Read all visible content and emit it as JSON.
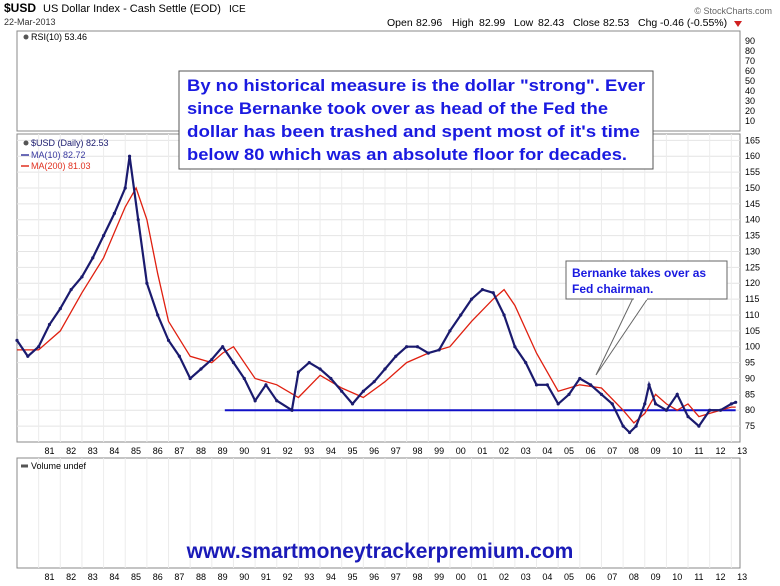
{
  "header": {
    "symbol": "$USD",
    "description": "US Dollar Index - Cash Settle (EOD)",
    "exchange": "ICE",
    "date": "22-Mar-2013",
    "open_label": "Open",
    "open": "82.96",
    "high_label": "High",
    "high": "82.99",
    "low_label": "Low",
    "low": "82.43",
    "close_label": "Close",
    "close": "82.53",
    "chg_label": "Chg",
    "chg": "-0.46 (-0.55%)",
    "source": "© StockCharts.com"
  },
  "rsi_panel": {
    "label": "RSI(10) 53.46",
    "ticks": [
      "90",
      "80",
      "70",
      "60",
      "50",
      "40",
      "30",
      "20",
      "10"
    ]
  },
  "price_panel": {
    "legend": [
      {
        "text": "$USD (Daily) 82.53",
        "color": "#1a1a6e"
      },
      {
        "text": "MA(10) 82.72",
        "color": "#3a3aa0"
      },
      {
        "text": "MA(200) 81.03",
        "color": "#e03020"
      }
    ],
    "y_ticks": [
      "165",
      "160",
      "155",
      "150",
      "145",
      "140",
      "135",
      "130",
      "125",
      "120",
      "115",
      "110",
      "105",
      "100",
      "95",
      "90",
      "85",
      "80",
      "75"
    ],
    "note_main": [
      "By no historical measure is the dollar \"strong\". Ever",
      "since Bernanke took over as head of the Fed the",
      "dollar has been trashed and spent most of it's time",
      "below 80 which was an absolute floor for decades."
    ],
    "note_bernanke": [
      "Bernanke takes over as",
      "Fed chairman."
    ]
  },
  "volume_panel": {
    "label": "Volume undef",
    "watermark": "www.smartmoneytrackerpremium.com"
  },
  "x_labels": [
    "81",
    "82",
    "83",
    "84",
    "85",
    "86",
    "87",
    "88",
    "89",
    "90",
    "91",
    "92",
    "93",
    "94",
    "95",
    "96",
    "97",
    "98",
    "99",
    "00",
    "01",
    "02",
    "03",
    "04",
    "05",
    "06",
    "07",
    "08",
    "09",
    "10",
    "11",
    "12",
    "13"
  ],
  "chart_data": {
    "type": "line",
    "title": "$USD US Dollar Index - Cash Settle (EOD)",
    "x_unit": "year",
    "ylim": [
      70,
      167
    ],
    "floor_line": {
      "value": 80,
      "x_start": 1989.6,
      "x_end": 2013.2
    },
    "series": [
      {
        "name": "$USD (Daily)",
        "x": [
          1980.0,
          1980.5,
          1981.0,
          1981.5,
          1982.0,
          1982.5,
          1983.0,
          1983.5,
          1984.0,
          1984.5,
          1985.0,
          1985.2,
          1985.6,
          1986.0,
          1986.5,
          1987.0,
          1987.5,
          1988.0,
          1988.5,
          1989.0,
          1989.5,
          1990.0,
          1990.5,
          1991.0,
          1991.5,
          1992.0,
          1992.7,
          1993.0,
          1993.5,
          1994.0,
          1994.5,
          1995.0,
          1995.5,
          1996.0,
          1996.5,
          1997.0,
          1997.5,
          1998.0,
          1998.5,
          1999.0,
          1999.5,
          2000.0,
          2000.5,
          2001.0,
          2001.5,
          2002.0,
          2002.5,
          2003.0,
          2003.5,
          2004.0,
          2004.5,
          2005.0,
          2005.5,
          2006.0,
          2006.5,
          2007.0,
          2007.5,
          2008.0,
          2008.3,
          2008.6,
          2009.0,
          2009.2,
          2009.5,
          2010.0,
          2010.5,
          2011.0,
          2011.5,
          2012.0,
          2012.5,
          2013.0,
          2013.2
        ],
        "values": [
          102,
          97,
          100,
          107,
          112,
          118,
          122,
          128,
          135,
          142,
          150,
          160,
          140,
          120,
          110,
          102,
          97,
          90,
          93,
          96,
          100,
          95,
          90,
          83,
          88,
          83,
          80,
          92,
          95,
          93,
          90,
          86,
          82,
          86,
          89,
          93,
          97,
          100,
          100,
          98,
          99,
          105,
          110,
          115,
          118,
          117,
          110,
          100,
          95,
          88,
          88,
          82,
          85,
          90,
          88,
          85,
          82,
          75,
          73,
          75,
          82,
          88,
          82,
          80,
          85,
          78,
          75,
          80,
          80,
          82,
          82.5
        ]
      },
      {
        "name": "MA(200)",
        "x": [
          1980.0,
          1981.0,
          1982.0,
          1983.0,
          1984.0,
          1984.5,
          1985.0,
          1985.5,
          1986.0,
          1986.5,
          1987.0,
          1988.0,
          1989.0,
          1989.5,
          1990.0,
          1991.0,
          1992.0,
          1993.0,
          1994.0,
          1995.0,
          1996.0,
          1997.0,
          1998.0,
          1999.0,
          2000.0,
          2001.0,
          2002.0,
          2002.5,
          2003.0,
          2004.0,
          2005.0,
          2006.0,
          2007.0,
          2008.0,
          2008.5,
          2009.0,
          2009.5,
          2010.0,
          2010.5,
          2011.0,
          2011.5,
          2012.0,
          2013.0,
          2013.2
        ],
        "values": [
          99,
          99,
          105,
          117,
          128,
          136,
          144,
          150,
          140,
          123,
          108,
          97,
          95,
          98,
          100,
          90,
          88,
          84,
          91,
          87,
          84,
          89,
          95,
          98,
          100,
          108,
          115,
          118,
          113,
          98,
          86,
          88,
          87,
          80,
          76,
          79,
          85,
          82,
          80,
          82,
          78,
          79,
          81,
          81
        ]
      }
    ]
  }
}
